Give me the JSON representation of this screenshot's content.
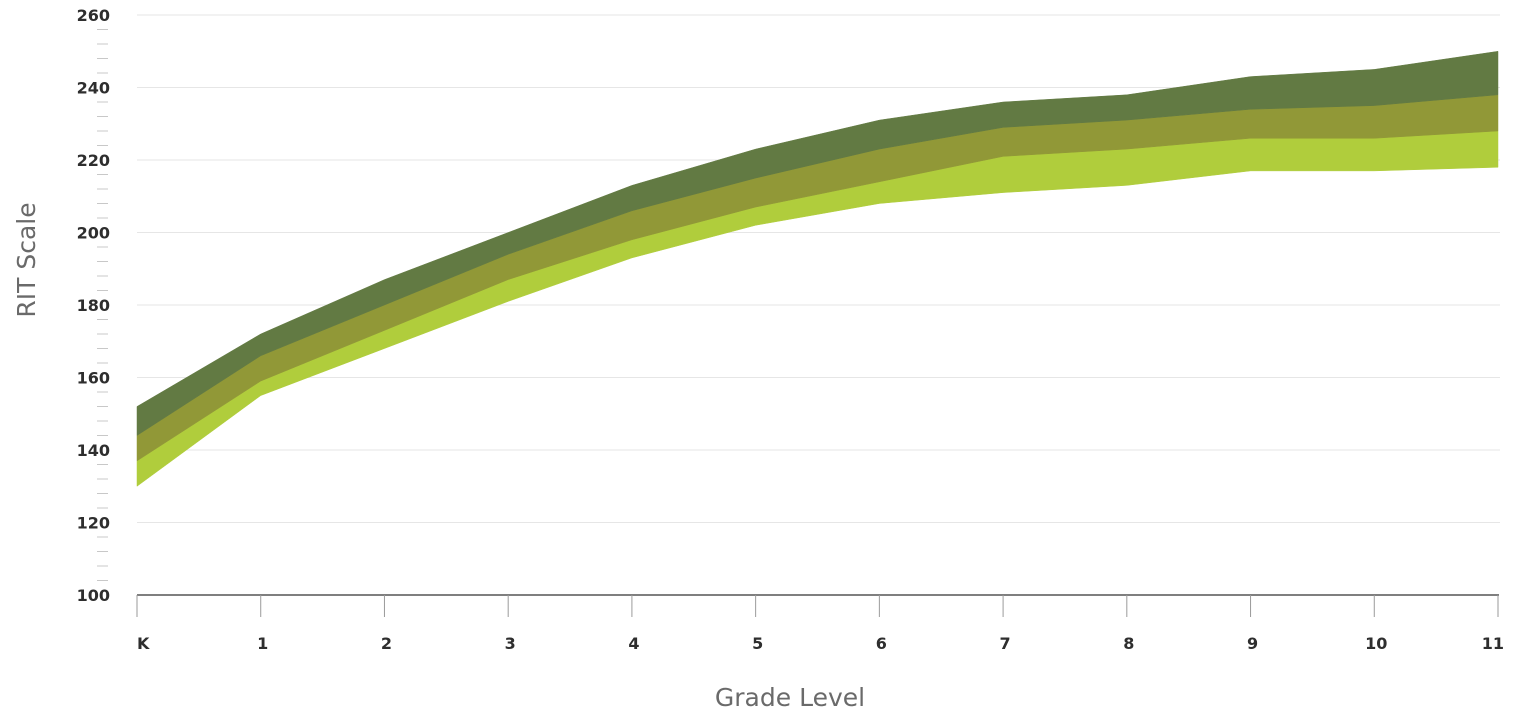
{
  "chart_data": {
    "type": "area",
    "xlabel": "Grade Level",
    "ylabel": "RIT Scale",
    "categories": [
      "K",
      "1",
      "2",
      "3",
      "4",
      "5",
      "6",
      "7",
      "8",
      "9",
      "10",
      "11"
    ],
    "ylim": [
      100,
      260
    ],
    "yticks": [
      100,
      120,
      140,
      160,
      180,
      200,
      220,
      240,
      260
    ],
    "minor_ytick_step": 4,
    "grid": true,
    "legend": "none",
    "boundaries": {
      "lower": [
        130,
        155,
        168,
        181,
        193,
        202,
        208,
        211,
        213,
        217,
        217,
        218
      ],
      "q1": [
        137,
        159,
        173,
        187,
        198,
        207,
        214,
        221,
        223,
        226,
        226,
        228
      ],
      "median": [
        144,
        166,
        180,
        194,
        206,
        215,
        223,
        229,
        231,
        234,
        235,
        238
      ],
      "upper": [
        152,
        172,
        187,
        200,
        213,
        223,
        231,
        236,
        238,
        243,
        245,
        250
      ]
    },
    "series": [
      {
        "lower_bound": "lower",
        "upper_bound": "q1",
        "color": "#b0cd3c"
      },
      {
        "lower_bound": "q1",
        "upper_bound": "median",
        "color": "#919837"
      },
      {
        "lower_bound": "median",
        "upper_bound": "upper",
        "color": "#627a43"
      }
    ]
  }
}
